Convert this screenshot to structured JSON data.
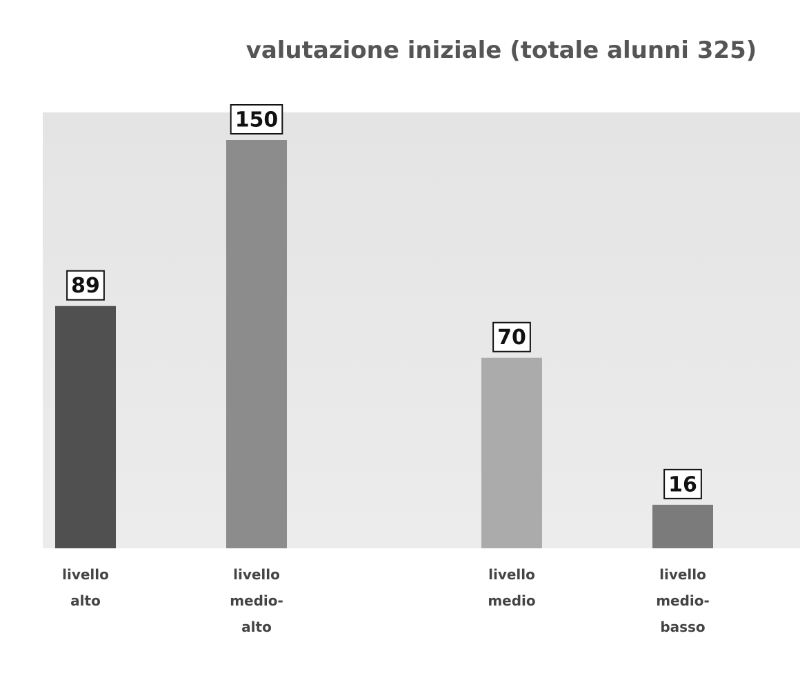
{
  "chart_data": {
    "type": "bar",
    "title": "valutazione iniziale  (totale alunni  325)",
    "categories": [
      "livello alto",
      "livello medio-alto",
      "livello medio",
      "livello medio-basso"
    ],
    "values": [
      89,
      150,
      70,
      16
    ],
    "colors": [
      "#505050",
      "#8c8c8c",
      "#ababab",
      "#7b7b7b"
    ]
  }
}
